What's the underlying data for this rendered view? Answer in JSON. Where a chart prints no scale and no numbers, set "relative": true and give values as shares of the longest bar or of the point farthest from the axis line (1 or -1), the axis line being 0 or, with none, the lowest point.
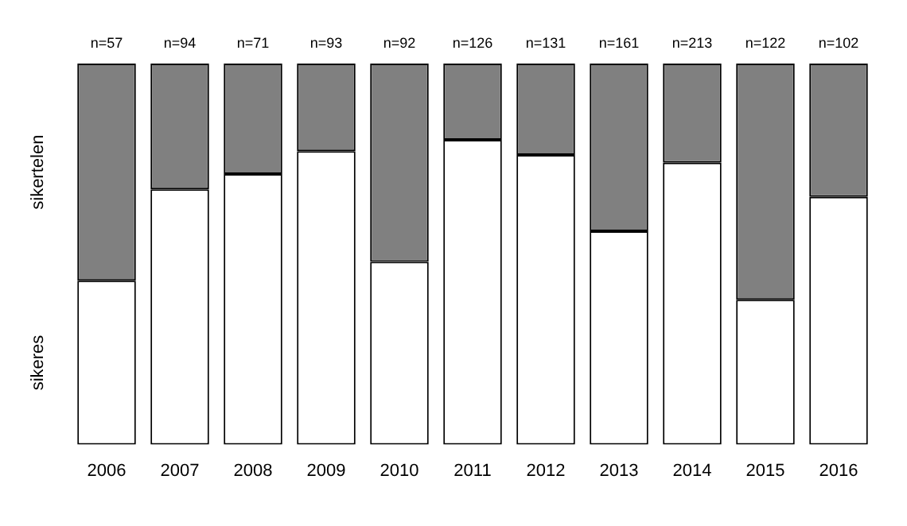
{
  "chart_data": {
    "type": "bar",
    "stacked": true,
    "relative": true,
    "legend": false,
    "grid": false,
    "categories": [
      "2006",
      "2007",
      "2008",
      "2009",
      "2010",
      "2011",
      "2012",
      "2013",
      "2014",
      "2015",
      "2016"
    ],
    "series": [
      {
        "name": "sikeres",
        "color": "#ffffff",
        "values": [
          0.43,
          0.67,
          0.71,
          0.77,
          0.48,
          0.8,
          0.76,
          0.56,
          0.74,
          0.38,
          0.65
        ]
      },
      {
        "name": "sikertelen",
        "color": "#808080",
        "values": [
          0.57,
          0.33,
          0.29,
          0.23,
          0.52,
          0.2,
          0.24,
          0.44,
          0.26,
          0.62,
          0.35
        ]
      }
    ],
    "annotations": [
      "n=57",
      "n=94",
      "n=71",
      "n=93",
      "n=92",
      "n=126",
      "n=131",
      "n=161",
      "n=213",
      "n=122",
      "n=102"
    ]
  }
}
